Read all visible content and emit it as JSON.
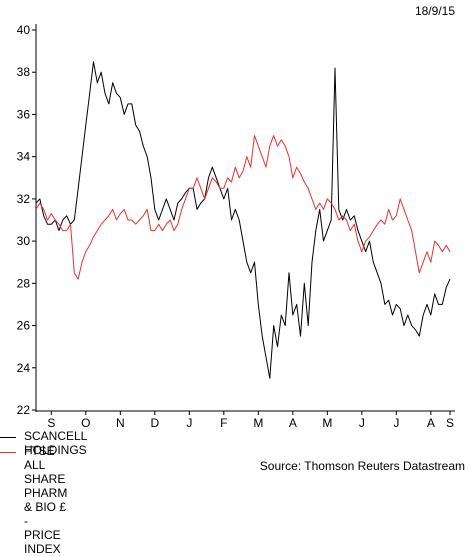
{
  "header": {
    "date": "18/9/15"
  },
  "footer": {
    "source": "Source: Thomson Reuters Datastream"
  },
  "colors": {
    "series_0": "#000000",
    "series_1": "#e8312f"
  },
  "chart_data": {
    "type": "line",
    "title": "",
    "xlabel": "",
    "ylabel": "",
    "ylim": [
      22,
      40
    ],
    "yticks": [
      22,
      24,
      26,
      28,
      30,
      32,
      34,
      36,
      38,
      40
    ],
    "xlim": [
      0,
      54
    ],
    "month_ticks": [
      {
        "label": "S",
        "x": 2
      },
      {
        "label": "O",
        "x": 6.5
      },
      {
        "label": "N",
        "x": 11
      },
      {
        "label": "D",
        "x": 15.5
      },
      {
        "label": "J",
        "x": 20
      },
      {
        "label": "F",
        "x": 24.5
      },
      {
        "label": "M",
        "x": 29
      },
      {
        "label": "A",
        "x": 33.5
      },
      {
        "label": "M",
        "x": 38
      },
      {
        "label": "J",
        "x": 42.5
      },
      {
        "label": "J",
        "x": 47
      },
      {
        "label": "A",
        "x": 51.5
      },
      {
        "label": "S",
        "x": 56
      }
    ],
    "series": [
      {
        "name": "SCANCELL HOLDINGS",
        "x": [
          0,
          0.5,
          1,
          1.5,
          2,
          2.5,
          3,
          3.5,
          4,
          4.5,
          5,
          5.5,
          6,
          6.5,
          7,
          7.5,
          8,
          8.5,
          9,
          9.5,
          10,
          10.5,
          11,
          11.5,
          12,
          12.5,
          13,
          13.5,
          14,
          14.5,
          15,
          15.5,
          16,
          16.5,
          17,
          17.5,
          18,
          18.5,
          19,
          19.5,
          20,
          20.5,
          21,
          21.5,
          22,
          22.5,
          23,
          23.5,
          24,
          24.5,
          25,
          25.5,
          26,
          26.5,
          27,
          27.5,
          28,
          28.5,
          29,
          29.5,
          30,
          30.5,
          31,
          31.5,
          32,
          32.5,
          33,
          33.5,
          34,
          34.5,
          35,
          35.5,
          36,
          36.5,
          37,
          37.5,
          38,
          38.5,
          39,
          39.5,
          40,
          40.5,
          41,
          41.5,
          42,
          42.5,
          43,
          43.5,
          44,
          44.5,
          45,
          45.5,
          46,
          46.5,
          47,
          47.5,
          48,
          48.5,
          49,
          49.5,
          50,
          50.5,
          51,
          51.5,
          52,
          52.5,
          53,
          53.5,
          54
        ],
        "values": [
          31.8,
          32.0,
          31.2,
          30.8,
          30.8,
          31.0,
          30.5,
          31.0,
          31.2,
          30.8,
          31.0,
          32.5,
          34.0,
          35.5,
          37.0,
          38.5,
          37.5,
          38.0,
          37.0,
          36.5,
          37.5,
          37.0,
          36.8,
          36.0,
          36.5,
          36.5,
          35.5,
          35.2,
          34.5,
          34.0,
          33.0,
          31.5,
          31.0,
          31.5,
          32.0,
          31.5,
          31.0,
          31.8,
          32.0,
          32.3,
          32.5,
          32.5,
          31.5,
          31.8,
          32.0,
          33.0,
          33.5,
          33.0,
          32.5,
          32.0,
          32.5,
          31.0,
          31.5,
          31.0,
          30.0,
          29.0,
          28.5,
          29.0,
          27.0,
          25.5,
          24.5,
          23.5,
          26.0,
          25.0,
          26.5,
          26.0,
          28.5,
          26.5,
          27.0,
          25.5,
          28.0,
          26.0,
          29.0,
          30.5,
          31.5,
          30.0,
          30.5,
          31.0,
          38.2,
          31.5,
          31.0,
          31.5,
          31.0,
          31.2,
          30.5,
          30.0,
          29.5,
          30.0,
          29.0,
          28.5,
          28.0,
          27.0,
          27.2,
          26.5,
          27.0,
          26.8,
          26.0,
          26.5,
          26.0,
          25.8,
          25.5,
          26.5,
          27.0,
          26.5,
          27.5,
          27.0,
          27.0,
          27.8,
          28.2
        ]
      },
      {
        "name": "FTSE ALL SHARE PHARM & BIO £ - PRICE INDEX",
        "x": [
          0,
          0.5,
          1,
          1.5,
          2,
          2.5,
          3,
          3.5,
          4,
          4.5,
          5,
          5.5,
          6,
          6.5,
          7,
          7.5,
          8,
          8.5,
          9,
          9.5,
          10,
          10.5,
          11,
          11.5,
          12,
          12.5,
          13,
          13.5,
          14,
          14.5,
          15,
          15.5,
          16,
          16.5,
          17,
          17.5,
          18,
          18.5,
          19,
          19.5,
          20,
          20.5,
          21,
          21.5,
          22,
          22.5,
          23,
          23.5,
          24,
          24.5,
          25,
          25.5,
          26,
          26.5,
          27,
          27.5,
          28,
          28.5,
          29,
          29.5,
          30,
          30.5,
          31,
          31.5,
          32,
          32.5,
          33,
          33.5,
          34,
          34.5,
          35,
          35.5,
          36,
          36.5,
          37,
          37.5,
          38,
          38.5,
          39,
          39.5,
          40,
          40.5,
          41,
          41.5,
          42,
          42.5,
          43,
          43.5,
          44,
          44.5,
          45,
          45.5,
          46,
          46.5,
          47,
          47.5,
          48,
          48.5,
          49,
          49.5,
          50,
          50.5,
          51,
          51.5,
          52,
          52.5,
          53,
          53.5,
          54
        ],
        "values": [
          31.5,
          31.8,
          31.5,
          31.0,
          31.3,
          31.0,
          30.8,
          30.5,
          30.5,
          30.8,
          28.5,
          28.2,
          29.0,
          29.5,
          29.8,
          30.2,
          30.5,
          30.8,
          31.0,
          31.2,
          31.5,
          31.0,
          31.3,
          31.5,
          31.0,
          31.0,
          30.8,
          31.0,
          31.2,
          31.5,
          30.5,
          30.5,
          30.8,
          30.5,
          30.8,
          31.0,
          30.5,
          30.8,
          31.5,
          32.0,
          32.5,
          32.5,
          33.0,
          32.5,
          32.0,
          32.5,
          33.0,
          32.8,
          32.5,
          32.5,
          33.0,
          32.8,
          33.5,
          33.0,
          33.3,
          34.0,
          33.5,
          35.0,
          34.5,
          34.0,
          33.5,
          34.5,
          35.0,
          34.5,
          34.8,
          34.5,
          34.0,
          33.0,
          33.5,
          33.2,
          32.8,
          32.5,
          32.0,
          31.5,
          31.8,
          31.5,
          32.0,
          31.8,
          31.5,
          31.0,
          31.2,
          31.0,
          30.5,
          30.8,
          30.0,
          29.5,
          30.0,
          30.2,
          30.5,
          30.8,
          31.0,
          30.8,
          31.5,
          31.0,
          31.2,
          32.0,
          31.5,
          31.0,
          30.5,
          29.5,
          28.5,
          29.0,
          29.5,
          29.0,
          30.0,
          29.8,
          29.5,
          29.8,
          29.5
        ]
      }
    ]
  }
}
